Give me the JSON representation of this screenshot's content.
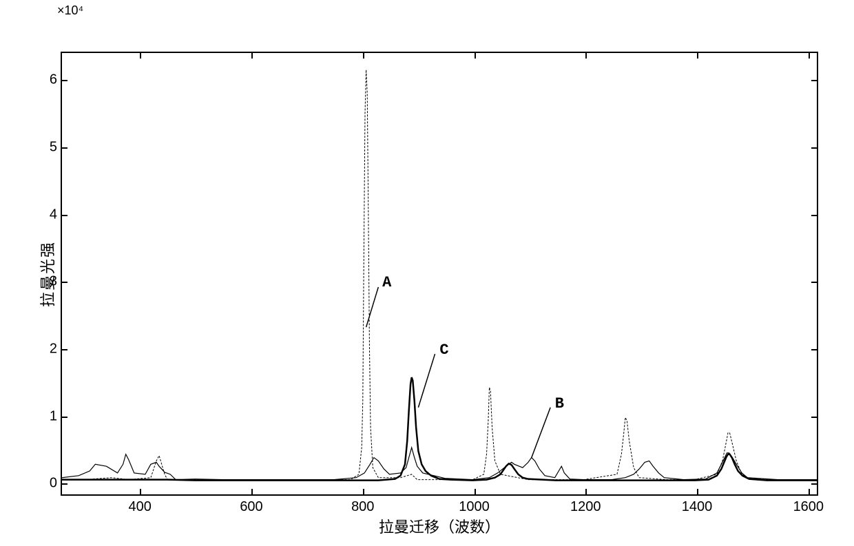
{
  "chart": {
    "type": "line",
    "y_multiplier": "×10⁴",
    "xlabel": "拉曼迁移（波数）",
    "ylabel": "拉曼光强",
    "xlim": [
      260,
      1620
    ],
    "ylim": [
      -0.2,
      6.4
    ],
    "xtick_values": [
      400,
      600,
      800,
      1000,
      1200,
      1400,
      1600
    ],
    "xtick_labels": [
      "400",
      "600",
      "800",
      "1000",
      "1200",
      "1400",
      "1600"
    ],
    "ytick_values": [
      0,
      1,
      2,
      3,
      4,
      5,
      6
    ],
    "ytick_labels": [
      "0",
      "1",
      "2",
      "3",
      "4",
      "5",
      "6"
    ],
    "background_color": "#ffffff",
    "axis_color": "#000000",
    "label_fontsize": 22,
    "tick_fontsize": 20,
    "series": {
      "A": {
        "label": "A",
        "line_width": 1,
        "color": "#000000",
        "dash": "3,2",
        "label_pos": {
          "x": 835,
          "y": 3.0
        },
        "annotation_line": {
          "x1": 830,
          "y1": 2.9,
          "x2": 808,
          "y2": 2.3
        },
        "points": [
          [
            260,
            0.02
          ],
          [
            300,
            0.02
          ],
          [
            350,
            0.05
          ],
          [
            380,
            0.02
          ],
          [
            420,
            0.05
          ],
          [
            430,
            0.3
          ],
          [
            435,
            0.38
          ],
          [
            445,
            0.1
          ],
          [
            450,
            0.02
          ],
          [
            500,
            0.02
          ],
          [
            600,
            0.02
          ],
          [
            700,
            0.02
          ],
          [
            780,
            0.02
          ],
          [
            795,
            0.1
          ],
          [
            800,
            0.5
          ],
          [
            802,
            1.2
          ],
          [
            804,
            3.5
          ],
          [
            806,
            5.5
          ],
          [
            808,
            6.15
          ],
          [
            810,
            5.8
          ],
          [
            812,
            4.0
          ],
          [
            814,
            2.0
          ],
          [
            816,
            0.8
          ],
          [
            820,
            0.2
          ],
          [
            830,
            0.05
          ],
          [
            870,
            0.05
          ],
          [
            890,
            0.1
          ],
          [
            900,
            0.02
          ],
          [
            950,
            0.02
          ],
          [
            1000,
            0.02
          ],
          [
            1020,
            0.1
          ],
          [
            1025,
            0.4
          ],
          [
            1028,
            0.9
          ],
          [
            1030,
            1.4
          ],
          [
            1032,
            1.35
          ],
          [
            1035,
            0.8
          ],
          [
            1040,
            0.3
          ],
          [
            1050,
            0.1
          ],
          [
            1100,
            0.02
          ],
          [
            1150,
            0.02
          ],
          [
            1200,
            0.02
          ],
          [
            1260,
            0.1
          ],
          [
            1268,
            0.4
          ],
          [
            1272,
            0.7
          ],
          [
            1275,
            0.95
          ],
          [
            1278,
            0.9
          ],
          [
            1282,
            0.6
          ],
          [
            1290,
            0.2
          ],
          [
            1300,
            0.05
          ],
          [
            1350,
            0.02
          ],
          [
            1400,
            0.02
          ],
          [
            1440,
            0.1
          ],
          [
            1450,
            0.3
          ],
          [
            1456,
            0.55
          ],
          [
            1460,
            0.72
          ],
          [
            1463,
            0.72
          ],
          [
            1468,
            0.55
          ],
          [
            1475,
            0.3
          ],
          [
            1485,
            0.1
          ],
          [
            1500,
            0.03
          ],
          [
            1550,
            0.02
          ],
          [
            1600,
            0.02
          ],
          [
            1620,
            0.02
          ]
        ]
      },
      "B": {
        "label": "B",
        "line_width": 1.2,
        "color": "#000000",
        "dash": "none",
        "label_pos": {
          "x": 1145,
          "y": 1.2
        },
        "annotation_line": {
          "x1": 1140,
          "y1": 1.1,
          "x2": 1106,
          "y2": 0.35
        },
        "points": [
          [
            260,
            0.05
          ],
          [
            290,
            0.08
          ],
          [
            310,
            0.15
          ],
          [
            320,
            0.25
          ],
          [
            340,
            0.22
          ],
          [
            360,
            0.12
          ],
          [
            370,
            0.25
          ],
          [
            375,
            0.4
          ],
          [
            380,
            0.32
          ],
          [
            390,
            0.12
          ],
          [
            410,
            0.1
          ],
          [
            420,
            0.25
          ],
          [
            430,
            0.28
          ],
          [
            435,
            0.22
          ],
          [
            445,
            0.13
          ],
          [
            455,
            0.1
          ],
          [
            465,
            0.02
          ],
          [
            500,
            0.03
          ],
          [
            550,
            0.02
          ],
          [
            600,
            0.02
          ],
          [
            650,
            0.02
          ],
          [
            700,
            0.02
          ],
          [
            750,
            0.02
          ],
          [
            790,
            0.05
          ],
          [
            805,
            0.12
          ],
          [
            815,
            0.25
          ],
          [
            822,
            0.35
          ],
          [
            830,
            0.3
          ],
          [
            840,
            0.18
          ],
          [
            850,
            0.1
          ],
          [
            870,
            0.12
          ],
          [
            880,
            0.2
          ],
          [
            885,
            0.35
          ],
          [
            890,
            0.5
          ],
          [
            895,
            0.35
          ],
          [
            900,
            0.22
          ],
          [
            910,
            0.12
          ],
          [
            950,
            0.04
          ],
          [
            1000,
            0.02
          ],
          [
            1030,
            0.05
          ],
          [
            1045,
            0.12
          ],
          [
            1060,
            0.22
          ],
          [
            1070,
            0.28
          ],
          [
            1075,
            0.25
          ],
          [
            1090,
            0.2
          ],
          [
            1100,
            0.28
          ],
          [
            1106,
            0.35
          ],
          [
            1112,
            0.3
          ],
          [
            1120,
            0.18
          ],
          [
            1130,
            0.08
          ],
          [
            1148,
            0.05
          ],
          [
            1155,
            0.15
          ],
          [
            1160,
            0.22
          ],
          [
            1165,
            0.12
          ],
          [
            1175,
            0.03
          ],
          [
            1200,
            0.02
          ],
          [
            1250,
            0.02
          ],
          [
            1275,
            0.05
          ],
          [
            1290,
            0.1
          ],
          [
            1300,
            0.18
          ],
          [
            1310,
            0.28
          ],
          [
            1318,
            0.3
          ],
          [
            1325,
            0.22
          ],
          [
            1335,
            0.12
          ],
          [
            1345,
            0.05
          ],
          [
            1380,
            0.02
          ],
          [
            1420,
            0.03
          ],
          [
            1440,
            0.12
          ],
          [
            1448,
            0.25
          ],
          [
            1454,
            0.35
          ],
          [
            1458,
            0.42
          ],
          [
            1462,
            0.42
          ],
          [
            1468,
            0.35
          ],
          [
            1475,
            0.25
          ],
          [
            1485,
            0.12
          ],
          [
            1495,
            0.05
          ],
          [
            1550,
            0.02
          ],
          [
            1600,
            0.02
          ],
          [
            1620,
            0.02
          ]
        ]
      },
      "C": {
        "label": "C",
        "line_width": 2.5,
        "color": "#000000",
        "dash": "none",
        "label_pos": {
          "x": 938,
          "y": 2.0
        },
        "annotation_line": {
          "x1": 932,
          "y1": 1.9,
          "x2": 902,
          "y2": 1.1
        },
        "points": [
          [
            260,
            0.02
          ],
          [
            300,
            0.02
          ],
          [
            350,
            0.02
          ],
          [
            400,
            0.02
          ],
          [
            450,
            0.02
          ],
          [
            500,
            0.01
          ],
          [
            550,
            0.01
          ],
          [
            600,
            0.01
          ],
          [
            650,
            0.01
          ],
          [
            700,
            0.01
          ],
          [
            750,
            0.01
          ],
          [
            800,
            0.01
          ],
          [
            830,
            0.01
          ],
          [
            860,
            0.03
          ],
          [
            870,
            0.08
          ],
          [
            878,
            0.25
          ],
          [
            882,
            0.6
          ],
          [
            885,
            1.05
          ],
          [
            888,
            1.45
          ],
          [
            890,
            1.55
          ],
          [
            892,
            1.5
          ],
          [
            895,
            1.2
          ],
          [
            898,
            0.8
          ],
          [
            902,
            0.45
          ],
          [
            908,
            0.25
          ],
          [
            915,
            0.15
          ],
          [
            925,
            0.08
          ],
          [
            940,
            0.03
          ],
          [
            960,
            0.02
          ],
          [
            1000,
            0.01
          ],
          [
            1025,
            0.02
          ],
          [
            1040,
            0.05
          ],
          [
            1050,
            0.1
          ],
          [
            1055,
            0.16
          ],
          [
            1060,
            0.22
          ],
          [
            1065,
            0.26
          ],
          [
            1070,
            0.24
          ],
          [
            1075,
            0.18
          ],
          [
            1082,
            0.1
          ],
          [
            1090,
            0.05
          ],
          [
            1100,
            0.03
          ],
          [
            1150,
            0.01
          ],
          [
            1200,
            0.01
          ],
          [
            1250,
            0.01
          ],
          [
            1300,
            0.01
          ],
          [
            1350,
            0.01
          ],
          [
            1400,
            0.01
          ],
          [
            1425,
            0.02
          ],
          [
            1440,
            0.08
          ],
          [
            1448,
            0.18
          ],
          [
            1453,
            0.28
          ],
          [
            1457,
            0.36
          ],
          [
            1460,
            0.4
          ],
          [
            1463,
            0.4
          ],
          [
            1467,
            0.35
          ],
          [
            1472,
            0.25
          ],
          [
            1478,
            0.15
          ],
          [
            1486,
            0.08
          ],
          [
            1498,
            0.03
          ],
          [
            1530,
            0.01
          ],
          [
            1570,
            0.01
          ],
          [
            1600,
            0.01
          ],
          [
            1620,
            0.01
          ]
        ]
      }
    }
  }
}
